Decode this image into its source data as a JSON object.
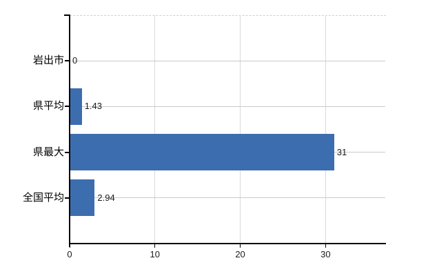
{
  "chart_data": {
    "type": "bar",
    "orientation": "horizontal",
    "title": "",
    "xlabel": "",
    "ylabel": "",
    "categories": [
      "岩出市",
      "県平均",
      "県最大",
      "全国平均"
    ],
    "values": [
      0,
      1.43,
      31,
      2.94
    ],
    "value_labels": [
      "0",
      "1.43",
      "31",
      "2.94"
    ],
    "xticks": [
      0,
      10,
      20,
      30
    ],
    "xtick_labels": [
      "0",
      "10",
      "20",
      "30"
    ],
    "xlim": [
      0,
      37
    ],
    "grid": true,
    "legend": false,
    "bar_color": "#3c6dae",
    "horizontal_gridline_color": "#c6ccc6",
    "vertical_gridline_color": "#d9d9d9",
    "axis_color": "#000000",
    "text_color": "#1a1a1a",
    "background_color": "#ffffff"
  }
}
